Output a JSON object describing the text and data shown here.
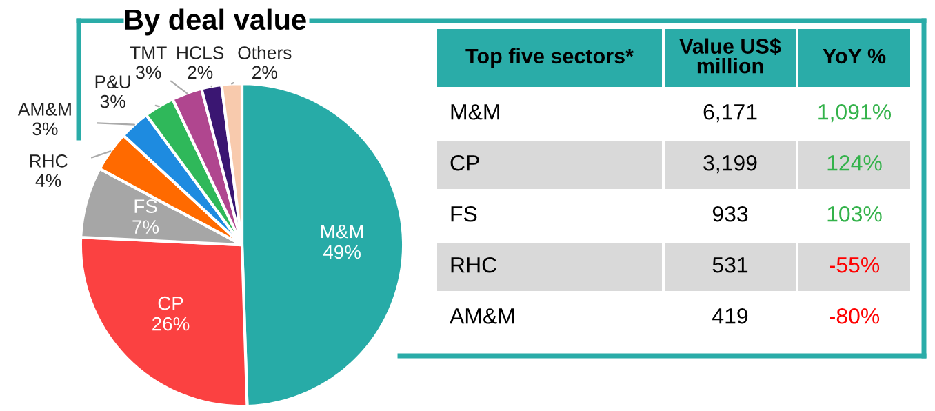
{
  "chart_data": [
    {
      "type": "pie",
      "title": "By deal value",
      "categories": [
        "M&M",
        "CP",
        "FS",
        "RHC",
        "AM&M",
        "P&U",
        "TMT",
        "HCLS",
        "Others"
      ],
      "values": [
        49,
        26,
        7,
        4,
        3,
        3,
        3,
        2,
        2
      ],
      "value_labels": [
        "49%",
        "26%",
        "7%",
        "4%",
        "3%",
        "3%",
        "3%",
        "2%",
        "2%"
      ],
      "colors": [
        "#27aba7",
        "#fb4141",
        "#a6a6a6",
        "#ff6a00",
        "#1e8be0",
        "#2fb85a",
        "#b0468f",
        "#3a1672",
        "#f8caad"
      ]
    },
    {
      "type": "other",
      "annotations": [
        "Top five sectors*",
        "Value US$\nmillion",
        "YoY %",
        "M&M",
        "6,171",
        "1,091%",
        "CP",
        "3,199",
        "124%",
        "FS",
        "933",
        "103%",
        "RHC",
        "531",
        "-55%",
        "AM&M",
        "419",
        "-80%"
      ],
      "colors": [
        "#000000",
        "#000000",
        "#000000",
        "#000000",
        "#000000",
        "#33b24a",
        "#000000",
        "#000000",
        "#33b24a",
        "#000000",
        "#000000",
        "#33b24a",
        "#000000",
        "#000000",
        "#ff0000",
        "#000000",
        "#000000",
        "#ff0000"
      ]
    }
  ]
}
